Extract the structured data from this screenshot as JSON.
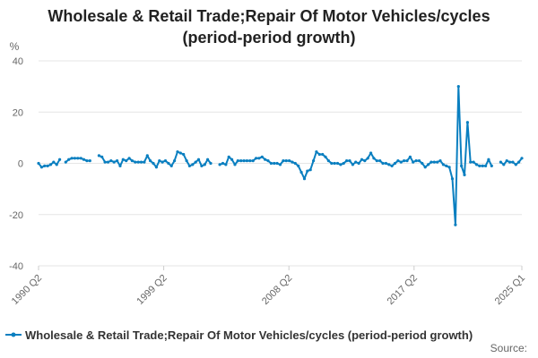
{
  "chart_data": {
    "type": "line",
    "title_line1": "Wholesale & Retail Trade;Repair Of Motor Vehicles/cycles",
    "title_line2": "(period-period growth)",
    "ylabel": "%",
    "ylim": [
      -40,
      40
    ],
    "yticks": [
      "40",
      "20",
      "0",
      "-20",
      "-40"
    ],
    "xticks": [
      "1990 Q2",
      "1999 Q2",
      "2008 Q2",
      "2017 Q2",
      "2025 Q1"
    ],
    "grid": true,
    "legend_position": "bottom",
    "color": "#0a7fc0",
    "series": [
      {
        "name": "Wholesale & Retail Trade;Repair Of Motor Vehicles/cycles (period-period growth)",
        "start": "1990 Q2",
        "end": "2025 Q1",
        "values": [
          0,
          -1.5,
          -1,
          -1,
          -0.5,
          0.5,
          -0.5,
          1.5,
          null,
          0.5,
          1.5,
          2,
          2,
          2,
          2,
          1.5,
          1,
          1,
          null,
          null,
          3,
          2.5,
          0.5,
          0.5,
          1,
          0.5,
          1,
          -1,
          1.5,
          1,
          2,
          1,
          0.5,
          0.5,
          0.5,
          0.5,
          3,
          1,
          0,
          -1.5,
          1,
          0.5,
          1,
          0,
          -1,
          1,
          4.5,
          4,
          3.5,
          1,
          -1,
          -0.5,
          0.5,
          1.5,
          -1,
          -0.5,
          1.5,
          0,
          null,
          null,
          -0.5,
          0,
          -0.5,
          2.5,
          1.5,
          -0.5,
          1,
          1,
          1,
          1,
          1,
          1,
          2,
          2,
          2.5,
          1.5,
          1,
          0,
          0,
          0,
          -0.5,
          1,
          1,
          1,
          0.5,
          0,
          -1,
          -3.5,
          -6,
          -3,
          -2.5,
          1,
          4.5,
          3.5,
          3.5,
          2.5,
          1,
          0,
          0,
          0,
          -0.5,
          0,
          1,
          1,
          -0.5,
          0.5,
          0,
          1.5,
          1,
          2,
          4,
          2,
          1,
          1,
          0,
          0,
          -0.5,
          -1,
          0,
          1,
          0.5,
          1,
          1,
          2.5,
          0.5,
          1,
          1,
          0,
          -1.5,
          -0.5,
          0.5,
          0.5,
          0.5,
          1,
          -0.5,
          -1,
          -1.5,
          -6,
          -24,
          30,
          -1,
          -4.5,
          16,
          0.5,
          0.5,
          -0.5,
          -1,
          -1,
          -1,
          1.5,
          -1,
          null,
          null,
          0.5,
          -0.5,
          1,
          0.5,
          0.5,
          -0.5,
          0.5,
          2
        ]
      }
    ]
  },
  "source_label": "Source:"
}
